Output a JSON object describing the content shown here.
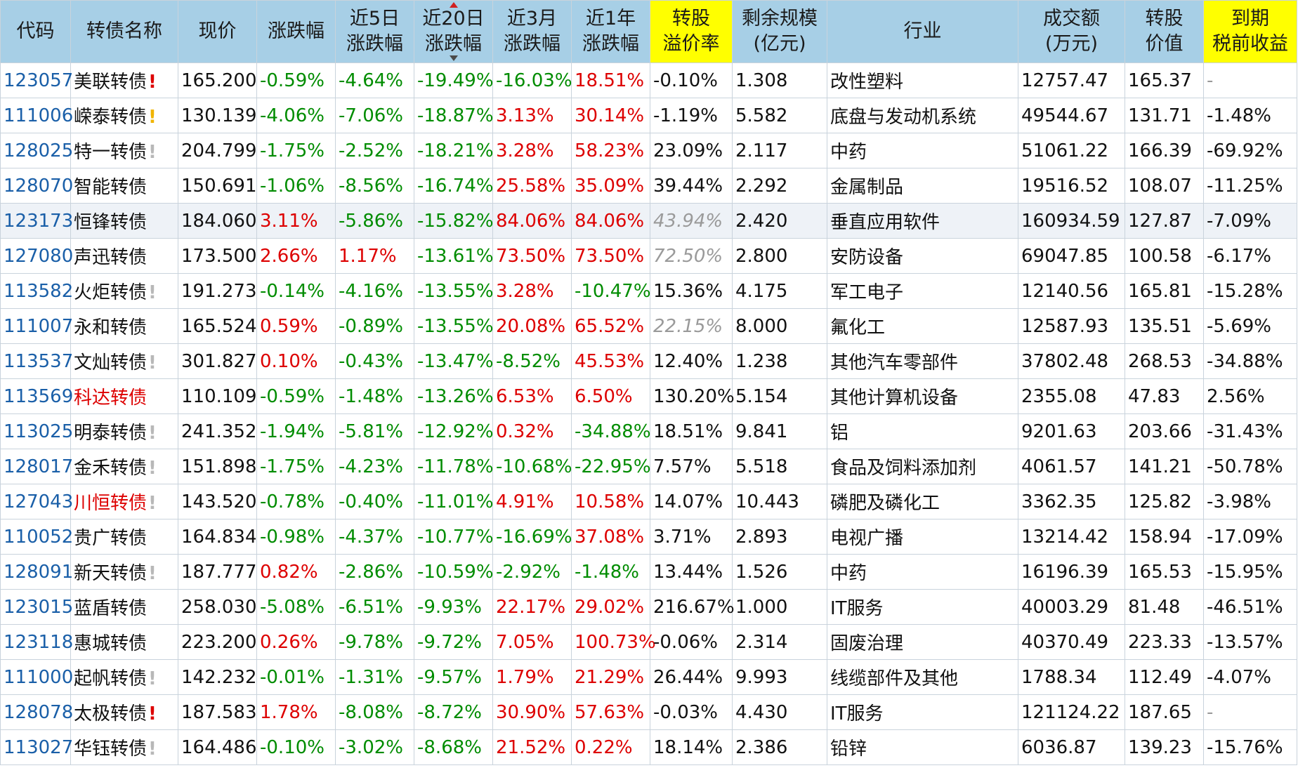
{
  "headers": [
    {
      "text": "代码",
      "hl": false
    },
    {
      "text": "转债名称",
      "hl": false
    },
    {
      "text": "现价",
      "hl": false
    },
    {
      "text": "涨跌幅",
      "hl": false
    },
    {
      "text": "近5日\n涨跌幅",
      "hl": false
    },
    {
      "text": "近20日\n涨跌幅",
      "hl": false,
      "sorted": true
    },
    {
      "text": "近3月\n涨跌幅",
      "hl": false
    },
    {
      "text": "近1年\n涨跌幅",
      "hl": false
    },
    {
      "text": "转股\n溢价率",
      "hl": true
    },
    {
      "text": "剩余规模\n(亿元)",
      "hl": false
    },
    {
      "text": "行业",
      "hl": false
    },
    {
      "text": "成交额\n(万元)",
      "hl": false
    },
    {
      "text": "转股\n价值",
      "hl": false
    },
    {
      "text": "到期\n税前收益",
      "hl": true
    }
  ],
  "colors": {
    "up": "#dd0000",
    "down": "#008c00",
    "code": "#1a5fa8",
    "header_bg": "#a7cfe6",
    "header_hl": "#ffff00"
  },
  "rows": [
    {
      "code": "123057",
      "name": "美联转债",
      "name_red": false,
      "flag": "red",
      "price": "165.200",
      "chg": "-0.59%",
      "d5": "-4.64%",
      "d20": "-19.49%",
      "m3": "-16.03%",
      "y1": "18.51%",
      "prem": "-0.10%",
      "prem_style": "",
      "size": "1.308",
      "industry": "改性塑料",
      "turnover": "12757.47",
      "conv": "165.37",
      "ytm": "-"
    },
    {
      "code": "111006",
      "name": "嵘泰转债",
      "name_red": false,
      "flag": "orange",
      "price": "130.139",
      "chg": "-4.06%",
      "d5": "-7.06%",
      "d20": "-18.87%",
      "m3": "3.13%",
      "y1": "30.14%",
      "prem": "-1.19%",
      "prem_style": "",
      "size": "5.582",
      "industry": "底盘与发动机系统",
      "turnover": "49544.67",
      "conv": "131.71",
      "ytm": "-1.48%"
    },
    {
      "code": "128025",
      "name": "特一转债",
      "name_red": false,
      "flag": "gray",
      "price": "204.799",
      "chg": "-1.75%",
      "d5": "-2.52%",
      "d20": "-18.21%",
      "m3": "3.28%",
      "y1": "58.23%",
      "prem": "23.09%",
      "prem_style": "",
      "size": "2.117",
      "industry": "中药",
      "turnover": "51061.22",
      "conv": "166.39",
      "ytm": "-69.92%"
    },
    {
      "code": "128070",
      "name": "智能转债",
      "name_red": false,
      "flag": "",
      "price": "150.691",
      "chg": "-1.06%",
      "d5": "-8.56%",
      "d20": "-16.74%",
      "m3": "25.58%",
      "y1": "35.09%",
      "prem": "39.44%",
      "prem_style": "",
      "size": "2.292",
      "industry": "金属制品",
      "turnover": "19516.52",
      "conv": "108.07",
      "ytm": "-11.25%"
    },
    {
      "code": "123173",
      "name": "恒锋转债",
      "name_red": false,
      "flag": "",
      "price": "184.060",
      "chg": "3.11%",
      "d5": "-5.86%",
      "d20": "-15.82%",
      "m3": "84.06%",
      "y1": "84.06%",
      "prem": "43.94%",
      "prem_style": "it",
      "size": "2.420",
      "industry": "垂直应用软件",
      "turnover": "160934.59",
      "conv": "127.87",
      "ytm": "-7.09%",
      "hover": true
    },
    {
      "code": "127080",
      "name": "声迅转债",
      "name_red": false,
      "flag": "",
      "price": "173.500",
      "chg": "2.66%",
      "d5": "1.17%",
      "d20": "-13.61%",
      "m3": "73.50%",
      "y1": "73.50%",
      "prem": "72.50%",
      "prem_style": "it",
      "size": "2.800",
      "industry": "安防设备",
      "turnover": "69047.85",
      "conv": "100.58",
      "ytm": "-6.17%"
    },
    {
      "code": "113582",
      "name": "火炬转债",
      "name_red": false,
      "flag": "gray",
      "price": "191.273",
      "chg": "-0.14%",
      "d5": "-4.16%",
      "d20": "-13.55%",
      "m3": "3.28%",
      "y1": "-10.47%",
      "prem": "15.36%",
      "prem_style": "",
      "size": "4.175",
      "industry": "军工电子",
      "turnover": "12140.56",
      "conv": "165.81",
      "ytm": "-15.28%"
    },
    {
      "code": "111007",
      "name": "永和转债",
      "name_red": false,
      "flag": "",
      "price": "165.524",
      "chg": "0.59%",
      "d5": "-0.89%",
      "d20": "-13.55%",
      "m3": "20.08%",
      "y1": "65.52%",
      "prem": "22.15%",
      "prem_style": "it",
      "size": "8.000",
      "industry": "氟化工",
      "turnover": "12587.93",
      "conv": "135.51",
      "ytm": "-5.69%"
    },
    {
      "code": "113537",
      "name": "文灿转债",
      "name_red": false,
      "flag": "gray",
      "price": "301.827",
      "chg": "0.10%",
      "d5": "-0.43%",
      "d20": "-13.47%",
      "m3": "-8.52%",
      "y1": "45.53%",
      "prem": "12.40%",
      "prem_style": "",
      "size": "1.238",
      "industry": "其他汽车零部件",
      "turnover": "37802.48",
      "conv": "268.53",
      "ytm": "-34.88%"
    },
    {
      "code": "113569",
      "name": "科达转债",
      "name_red": true,
      "flag": "",
      "price": "110.109",
      "chg": "-0.59%",
      "d5": "-1.48%",
      "d20": "-13.26%",
      "m3": "6.53%",
      "y1": "6.50%",
      "prem": "130.20%",
      "prem_style": "",
      "size": "5.154",
      "industry": "其他计算机设备",
      "turnover": "2355.08",
      "conv": "47.83",
      "ytm": "2.56%"
    },
    {
      "code": "113025",
      "name": "明泰转债",
      "name_red": false,
      "flag": "gray",
      "price": "241.352",
      "chg": "-1.94%",
      "d5": "-5.81%",
      "d20": "-12.92%",
      "m3": "0.32%",
      "y1": "-34.88%",
      "prem": "18.51%",
      "prem_style": "",
      "size": "9.841",
      "industry": "铝",
      "turnover": "9201.63",
      "conv": "203.66",
      "ytm": "-31.43%"
    },
    {
      "code": "128017",
      "name": "金禾转债",
      "name_red": false,
      "flag": "gray",
      "price": "151.898",
      "chg": "-1.75%",
      "d5": "-4.23%",
      "d20": "-11.78%",
      "m3": "-10.68%",
      "y1": "-22.95%",
      "prem": "7.57%",
      "prem_style": "",
      "size": "5.518",
      "industry": "食品及饲料添加剂",
      "turnover": "4061.57",
      "conv": "141.21",
      "ytm": "-50.78%"
    },
    {
      "code": "127043",
      "name": "川恒转债",
      "name_red": true,
      "flag": "gray",
      "price": "143.520",
      "chg": "-0.78%",
      "d5": "-0.40%",
      "d20": "-11.01%",
      "m3": "4.91%",
      "y1": "10.58%",
      "prem": "14.07%",
      "prem_style": "",
      "size": "10.443",
      "industry": "磷肥及磷化工",
      "turnover": "3362.35",
      "conv": "125.82",
      "ytm": "-3.98%"
    },
    {
      "code": "110052",
      "name": "贵广转债",
      "name_red": false,
      "flag": "",
      "price": "164.834",
      "chg": "-0.98%",
      "d5": "-4.37%",
      "d20": "-10.77%",
      "m3": "-16.69%",
      "y1": "37.08%",
      "prem": "3.71%",
      "prem_style": "",
      "size": "2.893",
      "industry": "电视广播",
      "turnover": "13214.42",
      "conv": "158.94",
      "ytm": "-17.09%"
    },
    {
      "code": "128091",
      "name": "新天转债",
      "name_red": false,
      "flag": "gray",
      "price": "187.777",
      "chg": "0.82%",
      "d5": "-2.86%",
      "d20": "-10.59%",
      "m3": "-2.92%",
      "y1": "-1.48%",
      "prem": "13.44%",
      "prem_style": "",
      "size": "1.526",
      "industry": "中药",
      "turnover": "16196.39",
      "conv": "165.53",
      "ytm": "-15.95%"
    },
    {
      "code": "123015",
      "name": "蓝盾转债",
      "name_red": false,
      "flag": "",
      "price": "258.030",
      "chg": "-5.08%",
      "d5": "-6.51%",
      "d20": "-9.93%",
      "m3": "22.17%",
      "y1": "29.02%",
      "prem": "216.67%",
      "prem_style": "",
      "size": "1.000",
      "industry": "IT服务",
      "turnover": "40003.29",
      "conv": "81.48",
      "ytm": "-46.51%"
    },
    {
      "code": "123118",
      "name": "惠城转债",
      "name_red": false,
      "flag": "",
      "price": "223.200",
      "chg": "0.26%",
      "d5": "-9.78%",
      "d20": "-9.72%",
      "m3": "7.05%",
      "y1": "100.73%",
      "prem": "-0.06%",
      "prem_style": "",
      "size": "2.314",
      "industry": "固废治理",
      "turnover": "40370.49",
      "conv": "223.33",
      "ytm": "-13.57%"
    },
    {
      "code": "111000",
      "name": "起帆转债",
      "name_red": false,
      "flag": "gray",
      "price": "142.232",
      "chg": "-0.01%",
      "d5": "-1.31%",
      "d20": "-9.57%",
      "m3": "1.79%",
      "y1": "21.29%",
      "prem": "26.44%",
      "prem_style": "",
      "size": "9.993",
      "industry": "线缆部件及其他",
      "turnover": "1788.34",
      "conv": "112.49",
      "ytm": "-4.07%"
    },
    {
      "code": "128078",
      "name": "太极转债",
      "name_red": false,
      "flag": "red",
      "price": "187.583",
      "chg": "1.78%",
      "d5": "-8.08%",
      "d20": "-8.72%",
      "m3": "30.90%",
      "y1": "57.63%",
      "prem": "-0.03%",
      "prem_style": "",
      "size": "4.430",
      "industry": "IT服务",
      "turnover": "121124.22",
      "conv": "187.65",
      "ytm": "-"
    },
    {
      "code": "113027",
      "name": "华钰转债",
      "name_red": false,
      "flag": "gray",
      "price": "164.486",
      "chg": "-0.10%",
      "d5": "-3.02%",
      "d20": "-8.68%",
      "m3": "21.52%",
      "y1": "0.22%",
      "prem": "18.14%",
      "prem_style": "",
      "size": "2.386",
      "industry": "铅锌",
      "turnover": "6036.87",
      "conv": "139.23",
      "ytm": "-15.76%"
    }
  ]
}
